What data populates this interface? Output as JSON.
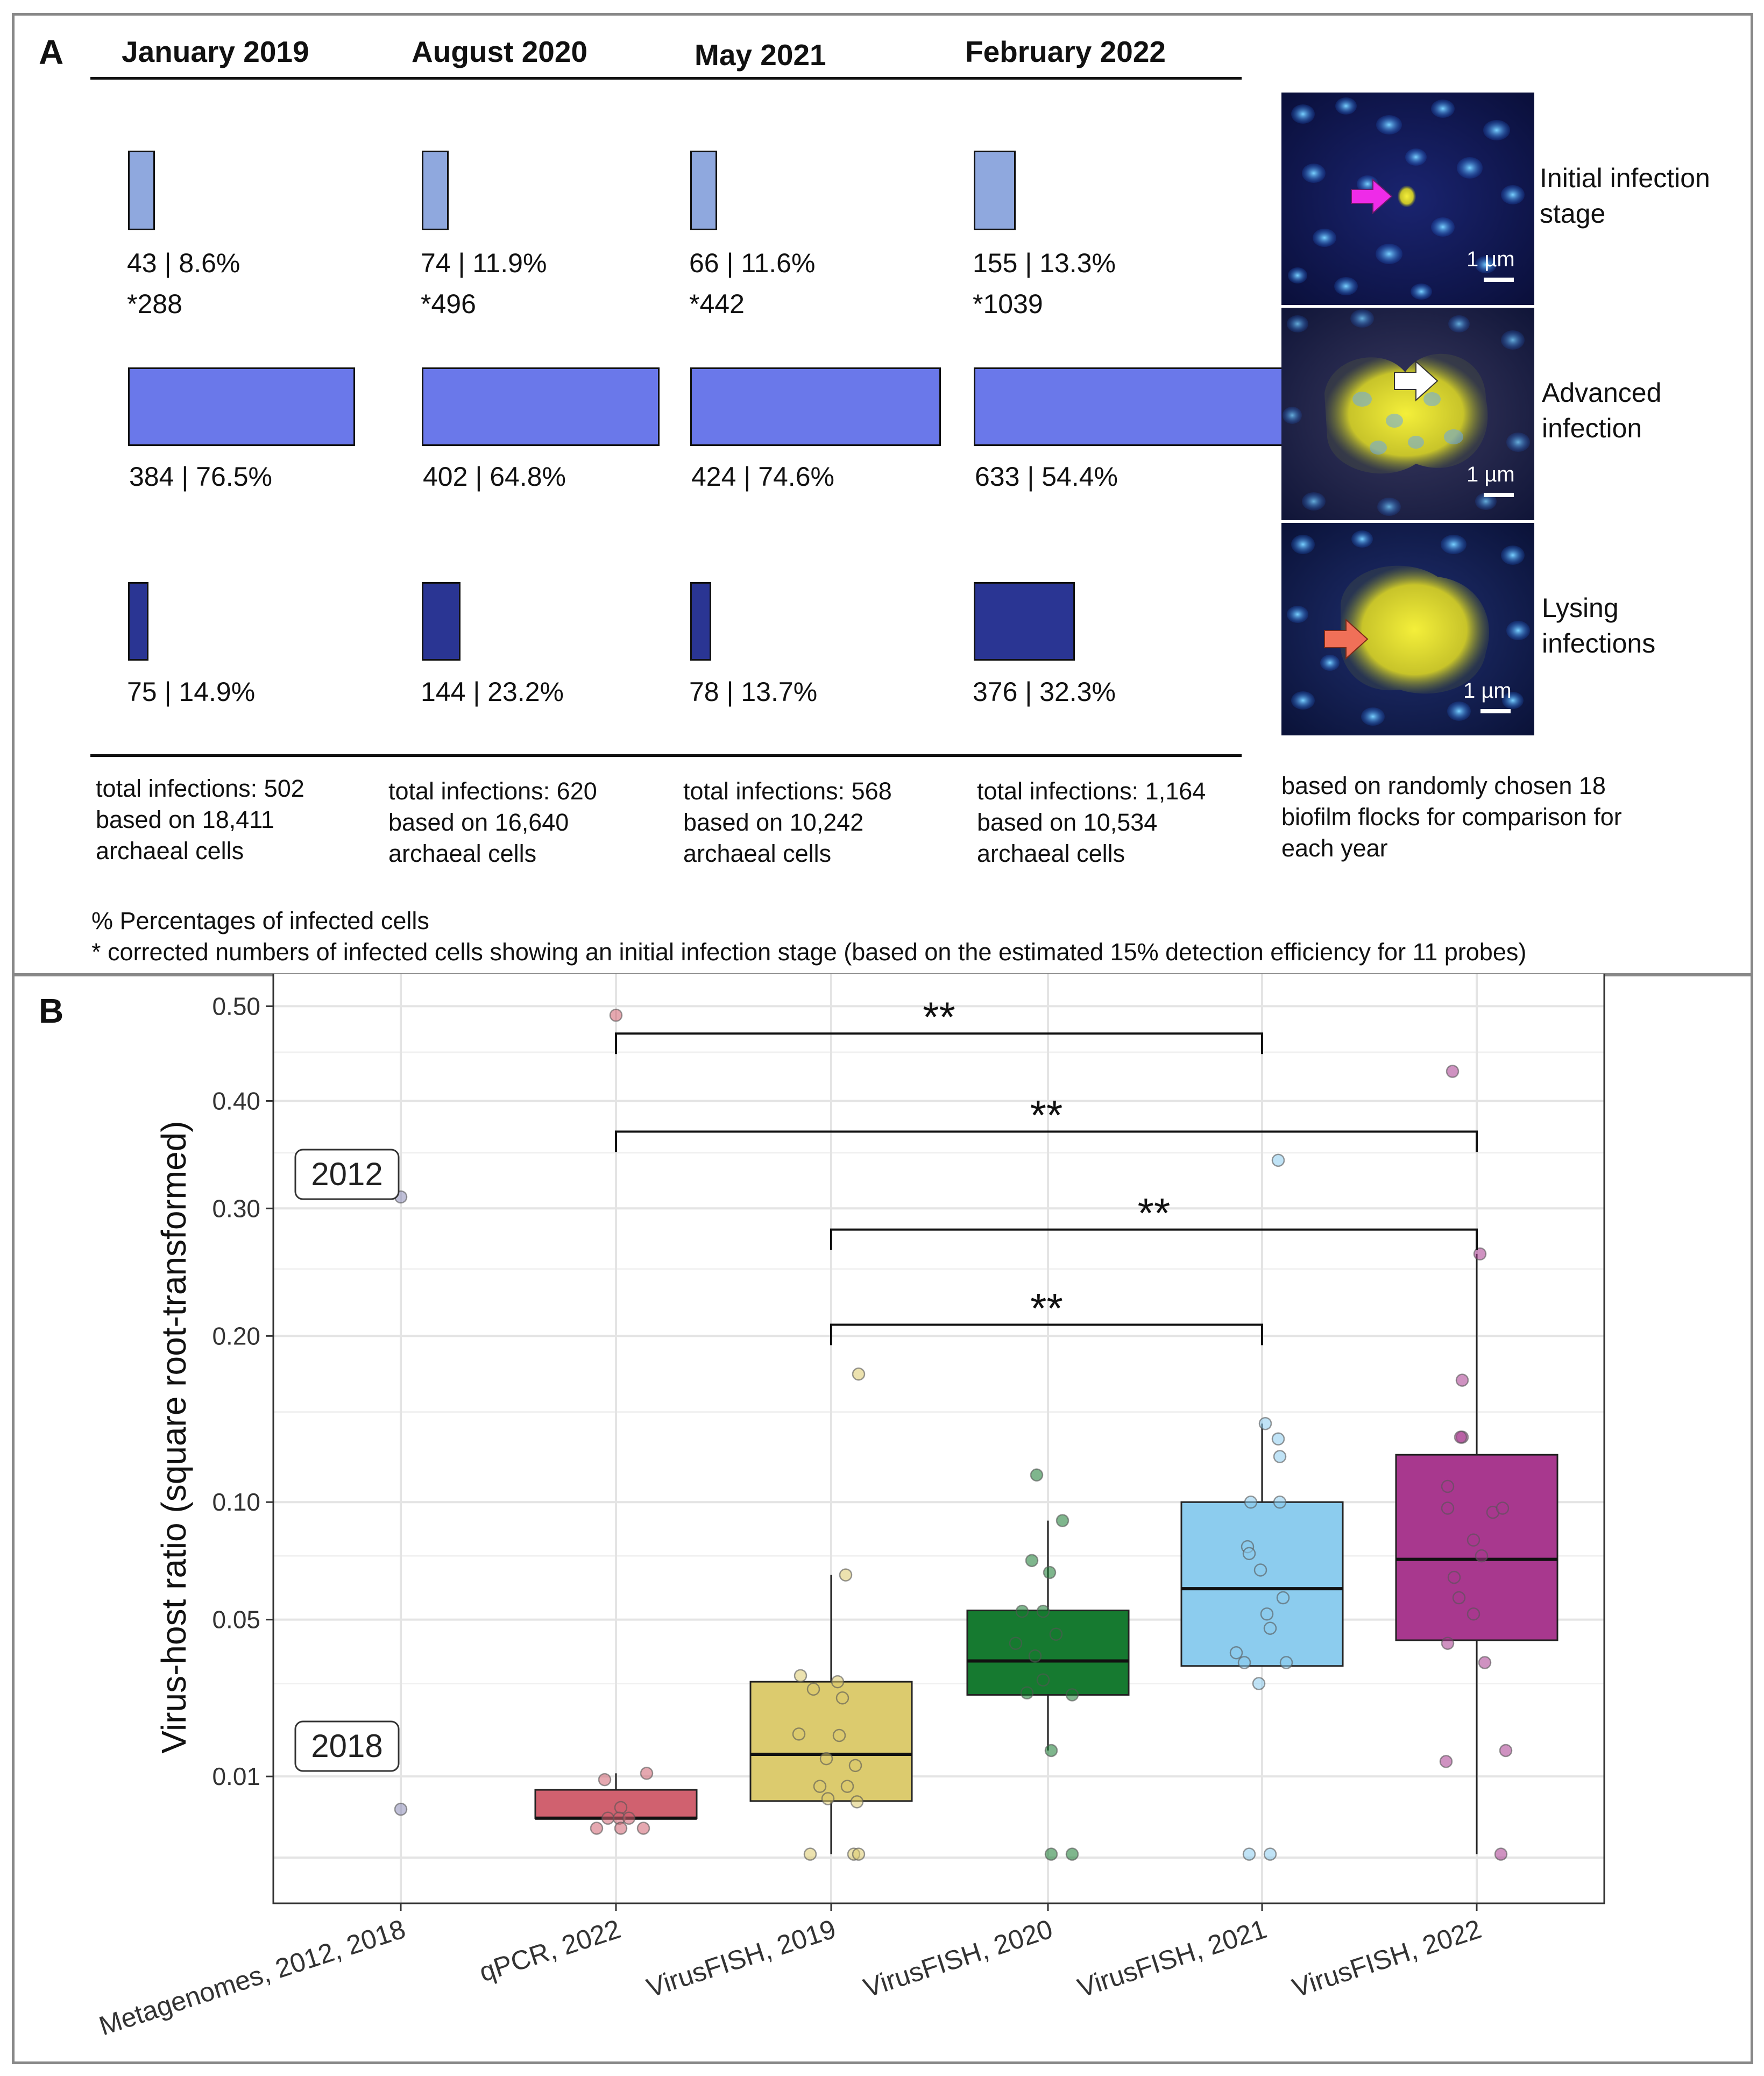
{
  "panel_a": {
    "letter": "A",
    "years": [
      {
        "name": "January 2019",
        "initial": "43 | 8.6%",
        "initial_value": 43,
        "corrected": "*288",
        "advanced": "384 | 76.5%",
        "advanced_value": 384,
        "lysing": "75 | 14.9%",
        "lysing_value": 75,
        "total": "total infections: 502",
        "based": "based on 18,411",
        "cells": "archaeal cells"
      },
      {
        "name": "August 2020",
        "initial": "74 | 11.9%",
        "initial_value": 74,
        "corrected": "*496",
        "advanced": "402 | 64.8%",
        "advanced_value": 402,
        "lysing": "144 | 23.2%",
        "lysing_value": 144,
        "total": "total infections: 620",
        "based": "based on 16,640",
        "cells": "archaeal cells"
      },
      {
        "name": "May 2021",
        "initial": "66 | 11.6%",
        "initial_value": 66,
        "corrected": "*442",
        "advanced": "424 | 74.6%",
        "advanced_value": 424,
        "lysing": "78 | 13.7%",
        "lysing_value": 78,
        "total": "total infections: 568",
        "based": "based on 10,242",
        "cells": "archaeal cells"
      },
      {
        "name": "February 2022",
        "initial": "155 | 13.3%",
        "initial_value": 155,
        "corrected": "*1039",
        "advanced": "633 | 54.4%",
        "advanced_value": 633,
        "lysing": "376 | 32.3%",
        "lysing_value": 376,
        "total": "total infections: 1,164",
        "based": "based on 10,534",
        "cells": "archaeal cells"
      }
    ],
    "stages": [
      {
        "line1": "Initial infection",
        "line2": "stage",
        "scale": "1 µm"
      },
      {
        "line1": "Advanced",
        "line2": "infection",
        "scale": "1 µm"
      },
      {
        "line1": "Lysing",
        "line2": "infections",
        "scale": "1 µm"
      }
    ],
    "sampling_note": [
      "based on randomly chosen 18",
      "biofilm flocks for comparison for",
      "each year"
    ],
    "footnote_pct": "% Percentages of infected cells",
    "footnote_corrected": "* corrected numbers of infected cells showing an initial infection stage (based on the estimated 15% detection efficiency for 11 probes)",
    "colors": {
      "initial": "#8fa8de",
      "advanced": "#6a78ea",
      "lysing": "#2a3593"
    }
  },
  "panel_b": {
    "letter": "B",
    "chart_data": {
      "type": "box",
      "ylabel": "Virus-host ratio (square root-transformed)",
      "y_scale": "sqrt",
      "ylim": [
        0,
        0.54
      ],
      "yticks": [
        0.01,
        0.05,
        0.1,
        0.2,
        0.3,
        0.4,
        0.5
      ],
      "ytick_labels": [
        "0.01",
        "0.05",
        "0.10",
        "0.20",
        "0.30",
        "0.40",
        "0.50"
      ],
      "categories": [
        "Metagenomes, 2012, 2018",
        "qPCR, 2022",
        "VirusFISH, 2019",
        "VirusFISH, 2020",
        "VirusFISH, 2021",
        "VirusFISH, 2022"
      ],
      "annotations": [
        {
          "text": "2012",
          "y": 0.31
        },
        {
          "text": "2018",
          "y": 0.01
        }
      ],
      "groups": [
        {
          "name": "Metagenomes, 2012, 2018",
          "color": "#8c8cb8",
          "box": null,
          "points": [
            [
              0,
              0.31
            ],
            [
              0,
              0.0055
            ]
          ]
        },
        {
          "name": "qPCR, 2022",
          "color": "#d0616f",
          "box": {
            "whislo": 0.0045,
            "q1": 0.0045,
            "med": 0.0045,
            "q3": 0.008,
            "whishi": 0.0105
          },
          "points": [
            [
              0,
              0.49
            ],
            [
              -0.07,
              0.0095
            ],
            [
              0.19,
              0.0105
            ],
            [
              0.03,
              0.0057
            ],
            [
              -0.05,
              0.0045
            ],
            [
              0.02,
              0.0045
            ],
            [
              0.08,
              0.0045
            ],
            [
              -0.12,
              0.0035
            ],
            [
              0.03,
              0.0035
            ],
            [
              0.17,
              0.0035
            ]
          ]
        },
        {
          "name": "VirusFISH, 2019",
          "color": "#dccb6e",
          "box": {
            "whislo": 0.0015,
            "q1": 0.0065,
            "med": 0.0138,
            "q3": 0.0305,
            "whishi": 0.067
          },
          "points": [
            [
              0.17,
              0.174
            ],
            [
              0.09,
              0.067
            ],
            [
              -0.19,
              0.0322
            ],
            [
              -0.11,
              0.0285
            ],
            [
              0.04,
              0.0305
            ],
            [
              0.07,
              0.0262
            ],
            [
              -0.2,
              0.0178
            ],
            [
              0.05,
              0.0175
            ],
            [
              -0.03,
              0.013
            ],
            [
              0.15,
              0.0118
            ],
            [
              -0.07,
              0.0085
            ],
            [
              0.1,
              0.0085
            ],
            [
              -0.02,
              0.0068
            ],
            [
              0.16,
              0.0064
            ],
            [
              -0.13,
              0.0015
            ],
            [
              0.14,
              0.0015
            ],
            [
              0.17,
              0.0015
            ]
          ]
        },
        {
          "name": "VirusFISH, 2020",
          "color": "#167a30",
          "box": {
            "whislo": 0.0145,
            "q1": 0.027,
            "med": 0.0365,
            "q3": 0.0533,
            "whishi": 0.091
          },
          "points": [
            [
              -0.07,
              0.114
            ],
            [
              0.09,
              0.091
            ],
            [
              -0.1,
              0.073
            ],
            [
              0.01,
              0.068
            ],
            [
              -0.16,
              0.053
            ],
            [
              -0.03,
              0.053
            ],
            [
              0.05,
              0.045
            ],
            [
              -0.2,
              0.042
            ],
            [
              -0.08,
              0.038
            ],
            [
              -0.03,
              0.031
            ],
            [
              -0.13,
              0.0275
            ],
            [
              0.15,
              0.027
            ],
            [
              0.02,
              0.0145
            ],
            [
              0.02,
              0.0015
            ],
            [
              0.15,
              0.0015
            ]
          ]
        },
        {
          "name": "VirusFISH, 2021",
          "color": "#8cccee",
          "box": {
            "whislo": 0.035,
            "q1": 0.035,
            "med": 0.0615,
            "q3": 0.1,
            "whishi": 0.143
          },
          "points": [
            [
              0.1,
              0.343
            ],
            [
              0.02,
              0.143
            ],
            [
              0.1,
              0.134
            ],
            [
              0.11,
              0.124
            ],
            [
              -0.07,
              0.1
            ],
            [
              0.11,
              0.1
            ],
            [
              -0.09,
              0.079
            ],
            [
              -0.08,
              0.076
            ],
            [
              -0.01,
              0.069
            ],
            [
              0.13,
              0.058
            ],
            [
              0.03,
              0.052
            ],
            [
              0.05,
              0.047
            ],
            [
              -0.16,
              0.039
            ],
            [
              -0.11,
              0.036
            ],
            [
              0.15,
              0.036
            ],
            [
              -0.02,
              0.03
            ],
            [
              -0.08,
              0.0015
            ],
            [
              0.05,
              0.0015
            ]
          ]
        },
        {
          "name": "VirusFISH, 2022",
          "color": "#a8388e",
          "box": {
            "whislo": 0.0015,
            "q1": 0.043,
            "med": 0.0735,
            "q3": 0.125,
            "whishi": 0.262
          },
          "points": [
            [
              -0.15,
              0.43
            ],
            [
              0.02,
              0.262
            ],
            [
              -0.09,
              0.17
            ],
            [
              -0.09,
              0.135
            ],
            [
              -0.1,
              0.135
            ],
            [
              -0.18,
              0.108
            ],
            [
              -0.18,
              0.097
            ],
            [
              0.1,
              0.095
            ],
            [
              0.16,
              0.097
            ],
            [
              -0.02,
              0.082
            ],
            [
              0.03,
              0.075
            ],
            [
              -0.14,
              0.066
            ],
            [
              -0.11,
              0.058
            ],
            [
              -0.02,
              0.052
            ],
            [
              -0.18,
              0.042
            ],
            [
              0.05,
              0.036
            ],
            [
              -0.19,
              0.0125
            ],
            [
              0.18,
              0.0145
            ],
            [
              0.15,
              0.0015
            ]
          ]
        }
      ],
      "significance": [
        {
          "from": 1,
          "to": 4,
          "label": "**",
          "y": 0.47
        },
        {
          "from": 1,
          "to": 5,
          "label": "**",
          "y": 0.37
        },
        {
          "from": 2,
          "to": 5,
          "label": "**",
          "y": 0.282
        },
        {
          "from": 2,
          "to": 4,
          "label": "**",
          "y": 0.208
        }
      ]
    }
  }
}
